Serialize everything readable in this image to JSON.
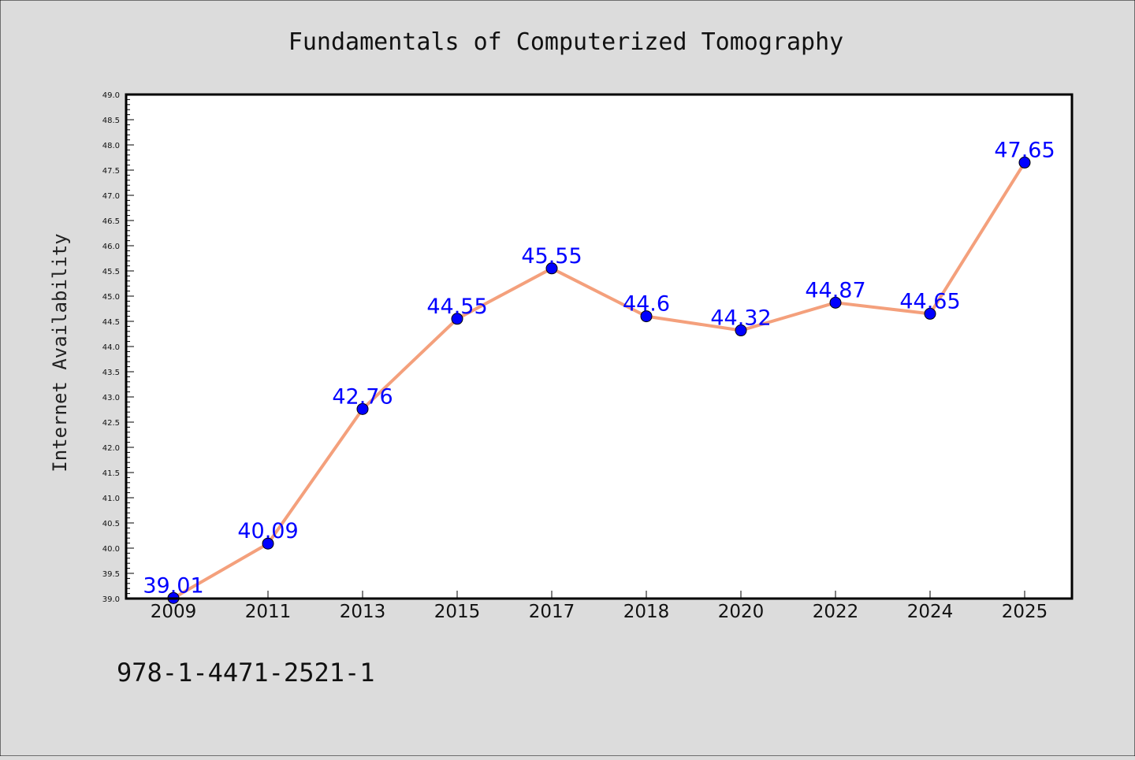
{
  "colors": {
    "background": "#dcdcdc",
    "plot_background": "#ffffff",
    "line": "#f4a07c",
    "marker": "#0000ff",
    "data_label": "#0000ff",
    "axis": "#000000"
  },
  "chart_data": {
    "type": "line",
    "title": "Fundamentals of Computerized Tomography",
    "xlabel": "",
    "ylabel": "Internet Availability",
    "categories": [
      "2009",
      "2011",
      "2013",
      "2015",
      "2017",
      "2018",
      "2020",
      "2022",
      "2024",
      "2025"
    ],
    "series": [
      {
        "values": [
          39.01,
          40.09,
          42.76,
          44.55,
          45.55,
          44.6,
          44.32,
          44.87,
          44.65,
          47.65
        ],
        "data_labels": [
          "39.01",
          "40.09",
          "42.76",
          "44.55",
          "45.55",
          "44.6",
          "44.32",
          "44.87",
          "44.65",
          "47.65"
        ]
      }
    ],
    "ylim": [
      39.0,
      49.0
    ],
    "y_ticks": [
      "39.0",
      "39.5",
      "40.0",
      "40.5",
      "41.0",
      "41.5",
      "42.0",
      "42.5",
      "43.0",
      "43.5",
      "44.0",
      "44.5",
      "45.0",
      "45.5",
      "46.0",
      "46.5",
      "47.0",
      "47.5",
      "48.0",
      "48.5",
      "49.0"
    ],
    "grid": false,
    "legend": "none"
  },
  "footer": {
    "code": "978-1-4471-2521-1"
  }
}
